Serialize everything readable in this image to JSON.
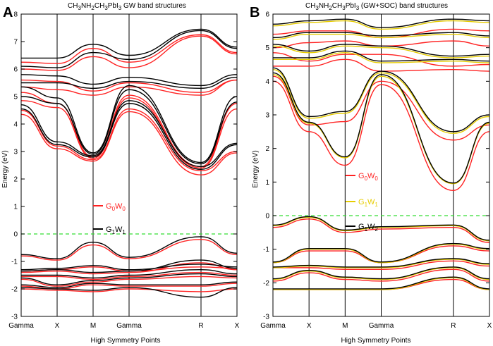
{
  "chart_data": [
    {
      "type": "line",
      "panel": "A",
      "title": {
        "base1": "CH",
        "s1": "3",
        "base2": "NH",
        "s2": "2",
        "base3": "CH",
        "s3": "3",
        "base4": "PbI",
        "s4": "3",
        "rest": " GW band structures"
      },
      "xlabel": "High Symmetry Points",
      "ylabel": "Energy (eV)",
      "ylim": [
        -3,
        8
      ],
      "yticks": [
        -3,
        -2,
        -1,
        0,
        1,
        2,
        3,
        4,
        5,
        6,
        7,
        8
      ],
      "xticks": [
        "Gamma",
        "X",
        "M",
        "Gamma",
        "R",
        "X"
      ],
      "x_positions": [
        0,
        1,
        2,
        3,
        5,
        6
      ],
      "fermi_level": 0,
      "fermi_color": "#33dd33",
      "legend": [
        {
          "base": "G",
          "s1": "0",
          "mid": "W",
          "s2": "0",
          "color": "#ff2222"
        },
        {
          "base": "G",
          "s1": "1",
          "mid": "W",
          "s2": "1",
          "color": "#000000"
        }
      ],
      "series": [
        {
          "name": "G0W0",
          "color": "#ff2222",
          "bands": [
            [
              4.35,
              3.1,
              2.65,
              4.45,
              2.15,
              2.95
            ],
            [
              4.5,
              3.2,
              2.7,
              4.55,
              2.3,
              3.0
            ],
            [
              4.85,
              4.6,
              2.75,
              4.95,
              2.4,
              4.55
            ],
            [
              5.15,
              4.75,
              2.8,
              5.05,
              2.45,
              4.75
            ],
            [
              5.35,
              5.25,
              5.05,
              5.35,
              5.05,
              5.6
            ],
            [
              5.6,
              5.55,
              5.2,
              5.5,
              5.15,
              5.6
            ],
            [
              6.0,
              5.95,
              6.45,
              6.05,
              7.2,
              6.55
            ],
            [
              6.25,
              6.2,
              6.75,
              6.25,
              7.25,
              6.6
            ],
            [
              -0.8,
              -0.95,
              -0.4,
              -0.9,
              -0.2,
              -0.75
            ],
            [
              -1.35,
              -1.3,
              -1.2,
              -1.35,
              -1.2,
              -1.25
            ],
            [
              -1.4,
              -1.35,
              -1.45,
              -1.4,
              -1.05,
              -1.3
            ],
            [
              -1.55,
              -1.55,
              -1.65,
              -1.55,
              -1.4,
              -1.5
            ],
            [
              -1.65,
              -1.9,
              -1.75,
              -1.65,
              -1.55,
              -1.6
            ],
            [
              -1.9,
              -2.0,
              -1.85,
              -1.9,
              -1.9,
              -1.8
            ],
            [
              -2.0,
              -2.05,
              -2.1,
              -2.0,
              -2.1,
              -2.0
            ]
          ]
        },
        {
          "name": "G1W1",
          "color": "#000000",
          "bands": [
            [
              4.55,
              3.25,
              2.8,
              4.75,
              2.35,
              3.25
            ],
            [
              4.7,
              3.35,
              2.85,
              4.85,
              2.45,
              3.3
            ],
            [
              5.0,
              4.75,
              2.9,
              5.25,
              2.55,
              4.8
            ],
            [
              5.35,
              4.95,
              2.95,
              5.4,
              2.6,
              5.0
            ],
            [
              5.5,
              5.5,
              5.3,
              5.55,
              5.3,
              5.7
            ],
            [
              5.8,
              5.75,
              5.45,
              5.7,
              5.4,
              5.8
            ],
            [
              6.1,
              6.05,
              6.6,
              6.35,
              7.4,
              6.75
            ],
            [
              6.4,
              6.4,
              6.9,
              6.5,
              7.45,
              6.8
            ],
            [
              -0.75,
              -0.9,
              -0.3,
              -0.85,
              -0.1,
              -0.7
            ],
            [
              -1.3,
              -1.25,
              -1.15,
              -1.3,
              -1.1,
              -1.2
            ],
            [
              -1.35,
              -1.3,
              -1.4,
              -1.35,
              -0.95,
              -1.25
            ],
            [
              -1.5,
              -1.5,
              -1.6,
              -1.5,
              -1.3,
              -1.45
            ],
            [
              -1.6,
              -1.85,
              -1.7,
              -1.6,
              -1.45,
              -1.55
            ],
            [
              -1.85,
              -1.95,
              -1.8,
              -1.85,
              -1.85,
              -1.75
            ],
            [
              -1.95,
              -2.0,
              -2.05,
              -1.95,
              -2.3,
              -1.95
            ]
          ]
        }
      ]
    },
    {
      "type": "line",
      "panel": "B",
      "title": {
        "base1": "CH",
        "s1": "3",
        "base2": "NH",
        "s2": "2",
        "base3": "CH",
        "s3": "3",
        "base4": "PbI",
        "s4": "3",
        "rest": " (GW+SOC) band structures"
      },
      "xlabel": "High Symmetry Points",
      "ylabel": "Energy (eV)",
      "ylim": [
        -3,
        6
      ],
      "yticks": [
        -3,
        -2,
        -1,
        0,
        1,
        2,
        3,
        4,
        5,
        6
      ],
      "xticks": [
        "Gamma",
        "X",
        "M",
        "Gamma",
        "R",
        "X"
      ],
      "x_positions": [
        0,
        1,
        2,
        3,
        5,
        6
      ],
      "fermi_level": 0,
      "fermi_color": "#33dd33",
      "legend": [
        {
          "base": "G",
          "s1": "0",
          "mid": "W",
          "s2": "0",
          "color": "#ff2222"
        },
        {
          "base": "G",
          "s1": "1",
          "mid": "W",
          "s2": "1",
          "color": "#e6cc00"
        },
        {
          "base": "G",
          "s1": "1",
          "mid": "W",
          "s2": "2",
          "color": "#000000"
        }
      ],
      "series": [
        {
          "name": "G0W0",
          "color": "#ff2222",
          "bands": [
            [
              4.0,
              2.5,
              1.5,
              3.9,
              0.75,
              2.5
            ],
            [
              4.15,
              2.7,
              2.8,
              4.0,
              2.25,
              2.7
            ],
            [
              4.45,
              4.45,
              4.65,
              4.3,
              4.35,
              4.3
            ],
            [
              4.85,
              4.6,
              4.8,
              4.8,
              4.45,
              4.5
            ],
            [
              5.0,
              5.15,
              5.2,
              5.05,
              5.2,
              5.05
            ],
            [
              5.4,
              5.5,
              5.5,
              5.3,
              5.55,
              5.5
            ],
            [
              -0.35,
              -0.1,
              -0.5,
              -0.4,
              -0.35,
              -0.8
            ],
            [
              -1.4,
              -1.05,
              -1.05,
              -1.4,
              -0.9,
              -1.05
            ],
            [
              -1.55,
              -1.55,
              -1.6,
              -1.6,
              -1.35,
              -1.5
            ],
            [
              -1.95,
              -1.7,
              -1.9,
              -1.95,
              -1.6,
              -1.95
            ],
            [
              -2.2,
              -2.2,
              -2.2,
              -2.2,
              -1.9,
              -2.2
            ]
          ]
        },
        {
          "name": "G1W1",
          "color": "#e6cc00",
          "bands": [
            [
              4.2,
              2.75,
              1.72,
              4.15,
              0.95,
              2.75
            ],
            [
              4.35,
              2.9,
              3.05,
              4.25,
              2.45,
              2.95
            ],
            [
              4.65,
              4.65,
              4.85,
              4.55,
              4.6,
              4.55
            ],
            [
              5.05,
              4.85,
              5.05,
              5.0,
              4.7,
              4.75
            ],
            [
              5.25,
              5.4,
              5.4,
              5.3,
              5.4,
              5.3
            ],
            [
              5.65,
              5.75,
              5.8,
              5.55,
              5.8,
              5.75
            ],
            [
              -0.3,
              -0.05,
              -0.45,
              -0.35,
              -0.3,
              -0.75
            ],
            [
              -1.4,
              -1.0,
              -1.0,
              -1.4,
              -0.85,
              -1.0
            ],
            [
              -1.55,
              -1.5,
              -1.55,
              -1.55,
              -1.3,
              -1.45
            ],
            [
              -1.9,
              -1.65,
              -1.85,
              -1.9,
              -1.55,
              -1.9
            ],
            [
              -2.2,
              -2.2,
              -2.2,
              -2.2,
              -1.85,
              -2.2
            ]
          ]
        },
        {
          "name": "G1W2",
          "color": "#000000",
          "bands": [
            [
              4.25,
              2.78,
              1.75,
              4.2,
              0.97,
              2.78
            ],
            [
              4.4,
              2.95,
              3.1,
              4.3,
              2.5,
              3.0
            ],
            [
              4.7,
              4.7,
              4.9,
              4.6,
              4.65,
              4.6
            ],
            [
              5.1,
              4.9,
              5.1,
              5.05,
              4.75,
              4.8
            ],
            [
              5.3,
              5.45,
              5.45,
              5.35,
              5.45,
              5.35
            ],
            [
              5.7,
              5.8,
              5.85,
              5.6,
              5.85,
              5.8
            ],
            [
              -0.28,
              -0.03,
              -0.43,
              -0.33,
              -0.28,
              -0.73
            ],
            [
              -1.38,
              -0.98,
              -0.98,
              -1.38,
              -0.83,
              -0.98
            ],
            [
              -1.53,
              -1.48,
              -1.53,
              -1.53,
              -1.28,
              -1.43
            ],
            [
              -1.88,
              -1.63,
              -1.83,
              -1.88,
              -1.53,
              -1.88
            ],
            [
              -2.18,
              -2.18,
              -2.18,
              -2.18,
              -1.83,
              -2.18
            ]
          ]
        }
      ]
    }
  ]
}
